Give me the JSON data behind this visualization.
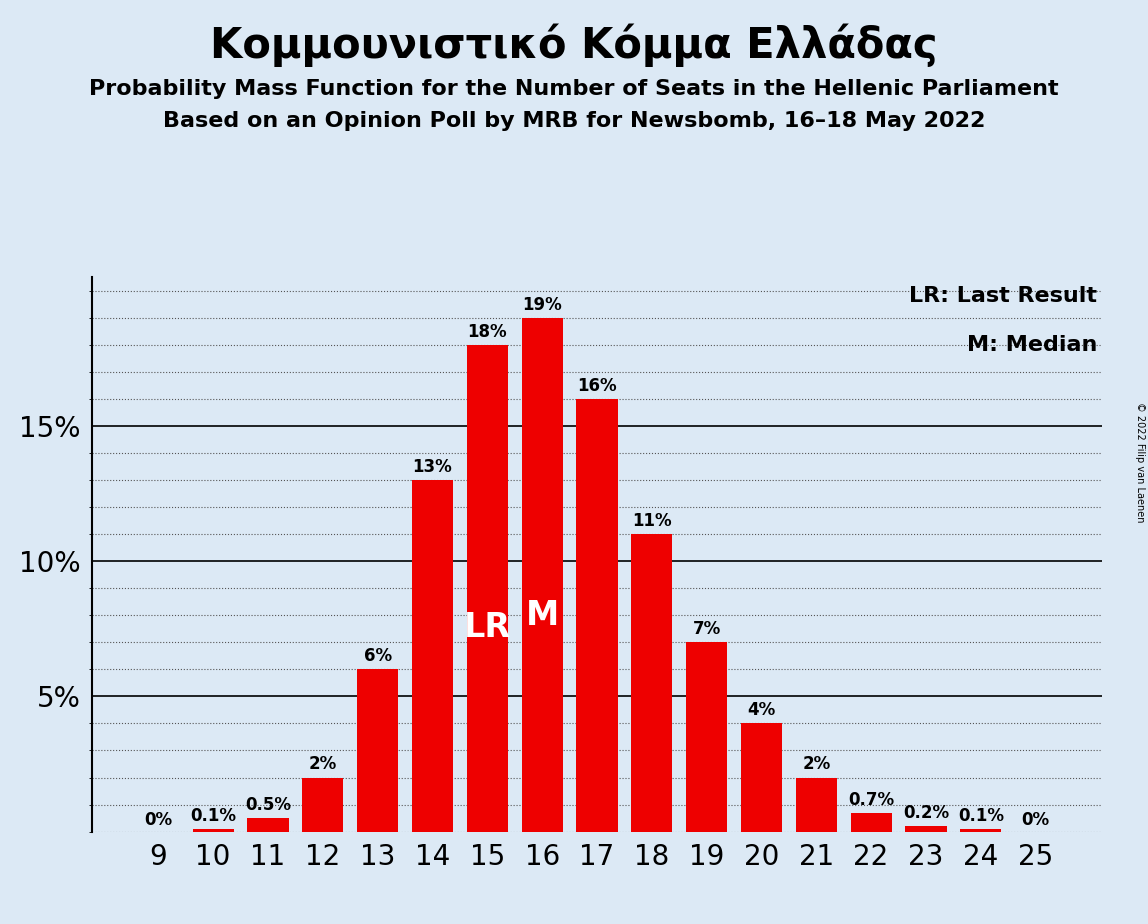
{
  "title": "Κομμουνιστικό Κόμμα Ελλάδας",
  "subtitle1": "Probability Mass Function for the Number of Seats in the Hellenic Parliament",
  "subtitle2": "Based on an Opinion Poll by MRB for Newsbomb, 16–18 May 2022",
  "copyright": "© 2022 Filip van Laenen",
  "seats": [
    9,
    10,
    11,
    12,
    13,
    14,
    15,
    16,
    17,
    18,
    19,
    20,
    21,
    22,
    23,
    24,
    25
  ],
  "probabilities": [
    0.0,
    0.1,
    0.5,
    2.0,
    6.0,
    13.0,
    18.0,
    19.0,
    16.0,
    11.0,
    7.0,
    4.0,
    2.0,
    0.7,
    0.2,
    0.1,
    0.0
  ],
  "bar_color": "#ee0000",
  "background_color": "#dce9f5",
  "last_result_seat": 15,
  "median_seat": 16,
  "lr_label": "LR",
  "m_label": "M",
  "legend_lr": "LR: Last Result",
  "legend_m": "M: Median",
  "yticks_major": [
    5,
    10,
    15
  ],
  "ylim": [
    0,
    20.5
  ],
  "bar_labels": [
    "0%",
    "0.1%",
    "0.5%",
    "2%",
    "6%",
    "13%",
    "18%",
    "19%",
    "16%",
    "11%",
    "7%",
    "4%",
    "2%",
    "0.7%",
    "0.2%",
    "0.1%",
    "0%"
  ],
  "title_fontsize": 30,
  "subtitle_fontsize": 16,
  "tick_fontsize": 20,
  "bar_label_fontsize": 12,
  "lr_m_fontsize": 24,
  "legend_fontsize": 16
}
